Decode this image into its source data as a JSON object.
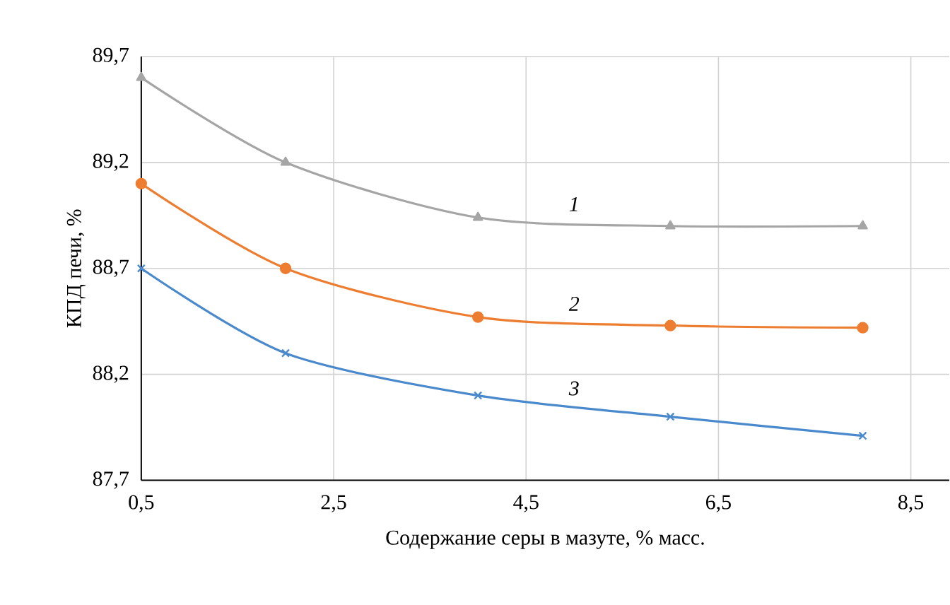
{
  "chart_data": {
    "type": "line",
    "xlabel": "Содержание серы в мазуте, % масс.",
    "ylabel": "КПД печи, %",
    "x": [
      0.5,
      2,
      4,
      6,
      8
    ],
    "series": [
      {
        "name": "1",
        "color": "#a5a5a5",
        "marker": "triangle",
        "values": [
          89.6,
          89.2,
          88.94,
          88.9,
          88.9
        ]
      },
      {
        "name": "2",
        "color": "#ed7d31",
        "marker": "circle",
        "values": [
          89.1,
          88.7,
          88.47,
          88.43,
          88.42
        ]
      },
      {
        "name": "3",
        "color": "#4a89cc",
        "marker": "cross",
        "values": [
          88.7,
          88.3,
          88.1,
          88.0,
          87.91
        ]
      }
    ],
    "xlim": [
      0.5,
      8.9
    ],
    "ylim": [
      87.7,
      89.7
    ],
    "xticks": [
      {
        "value": 0.5,
        "label": "0,5"
      },
      {
        "value": 2.5,
        "label": "2,5"
      },
      {
        "value": 4.5,
        "label": "4,5"
      },
      {
        "value": 6.5,
        "label": "6,5"
      },
      {
        "value": 8.5,
        "label": "8,5"
      }
    ],
    "yticks": [
      {
        "value": 87.7,
        "label": "87,7"
      },
      {
        "value": 88.2,
        "label": "88,2"
      },
      {
        "value": 88.7,
        "label": "88,7"
      },
      {
        "value": 89.2,
        "label": "89,2"
      },
      {
        "value": 89.7,
        "label": "89,7"
      }
    ],
    "grid": true,
    "legend": false,
    "line_style": "solid"
  }
}
